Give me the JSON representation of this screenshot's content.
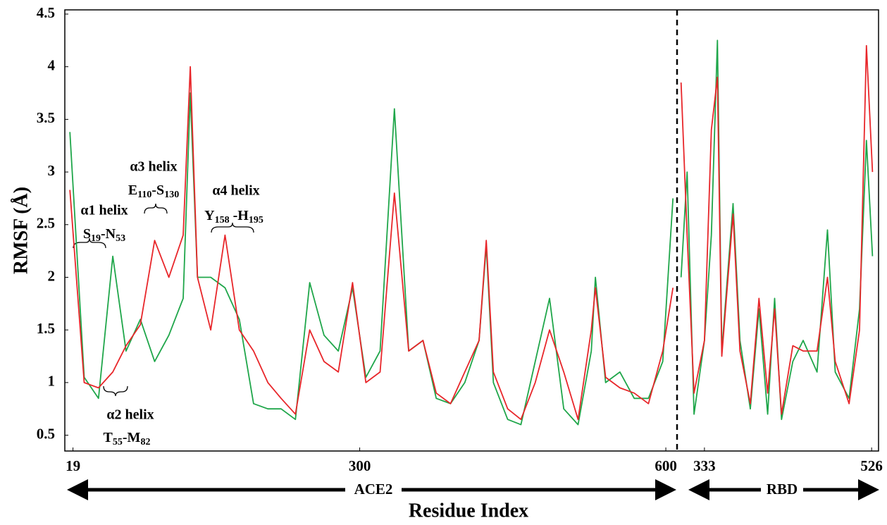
{
  "chart_data": [
    {
      "type": "line",
      "region": "ACE2",
      "ylabel": "RMSF (Å)",
      "xlabel": "Residue Index",
      "xlim": [
        11,
        611
      ],
      "xticks": [
        19,
        300,
        600
      ],
      "ylim": [
        0.35,
        4.54
      ],
      "yticks": [
        0.5,
        1,
        1.5,
        2,
        2.5,
        3,
        3.5,
        4,
        4.5
      ],
      "x": [
        16,
        30,
        44,
        58,
        71,
        85,
        99,
        113,
        127,
        134,
        141,
        154,
        168,
        182,
        196,
        210,
        223,
        237,
        251,
        265,
        279,
        293,
        306,
        320,
        334,
        348,
        362,
        375,
        389,
        403,
        417,
        424,
        431,
        445,
        458,
        472,
        486,
        500,
        514,
        527,
        531,
        541,
        555,
        569,
        583,
        597,
        607
      ],
      "series": [
        {
          "color": "#1fa64a",
          "values": [
            3.38,
            1.05,
            0.85,
            2.2,
            1.3,
            1.6,
            1.2,
            1.45,
            1.8,
            3.75,
            2.0,
            2.0,
            1.9,
            1.6,
            0.8,
            0.75,
            0.75,
            0.65,
            1.95,
            1.45,
            1.3,
            1.9,
            1.05,
            1.3,
            3.6,
            1.3,
            1.4,
            0.85,
            0.8,
            1.0,
            1.4,
            2.3,
            1.0,
            0.65,
            0.6,
            1.2,
            1.8,
            0.75,
            0.6,
            1.3,
            2.0,
            1.0,
            1.1,
            0.85,
            0.85,
            1.2,
            2.75
          ]
        },
        {
          "color": "#e8262a",
          "values": [
            2.83,
            1.0,
            0.95,
            1.1,
            1.35,
            1.55,
            2.35,
            2.0,
            2.4,
            4.0,
            2.0,
            1.5,
            2.4,
            1.5,
            1.3,
            1.0,
            0.85,
            0.7,
            1.5,
            1.2,
            1.1,
            1.95,
            1.0,
            1.1,
            2.8,
            1.3,
            1.4,
            0.9,
            0.8,
            1.1,
            1.4,
            2.35,
            1.1,
            0.75,
            0.65,
            1.0,
            1.5,
            1.1,
            0.65,
            1.5,
            1.9,
            1.05,
            0.95,
            0.9,
            0.8,
            1.3,
            1.9
          ]
        }
      ],
      "annotations": [
        {
          "title": "α1 helix",
          "range": [
            "S",
            "19",
            "-N",
            "53"
          ]
        },
        {
          "title": "α2 helix",
          "range": [
            "T",
            "55",
            "-M",
            "82"
          ]
        },
        {
          "title": "α3 helix",
          "range": [
            "E",
            "110",
            "-S",
            "130"
          ]
        },
        {
          "title": "α4 helix",
          "range": [
            "Y",
            "158",
            " -H",
            "195"
          ]
        }
      ]
    },
    {
      "type": "line",
      "region": "RBD",
      "xlim": [
        303,
        534
      ],
      "xticks": [
        333,
        526
      ],
      "ylim": [
        0.35,
        4.54
      ],
      "x": [
        306,
        313,
        321,
        333,
        341,
        348,
        353,
        366,
        374,
        386,
        396,
        406,
        414,
        422,
        435,
        447,
        463,
        475,
        484,
        500,
        512,
        520,
        527
      ],
      "series": [
        {
          "color": "#1fa64a",
          "values": [
            2.0,
            3.0,
            0.7,
            1.4,
            2.4,
            4.25,
            1.3,
            2.7,
            1.4,
            0.75,
            1.7,
            0.7,
            1.8,
            0.65,
            1.2,
            1.4,
            1.1,
            2.45,
            1.1,
            0.85,
            1.7,
            3.3,
            2.2
          ]
        },
        {
          "color": "#e8262a",
          "values": [
            3.85,
            2.4,
            0.9,
            1.4,
            3.4,
            3.9,
            1.25,
            2.6,
            1.3,
            0.8,
            1.8,
            0.9,
            1.7,
            0.7,
            1.35,
            1.3,
            1.3,
            2.0,
            1.2,
            0.8,
            1.5,
            4.2,
            3.0
          ]
        }
      ]
    }
  ]
}
